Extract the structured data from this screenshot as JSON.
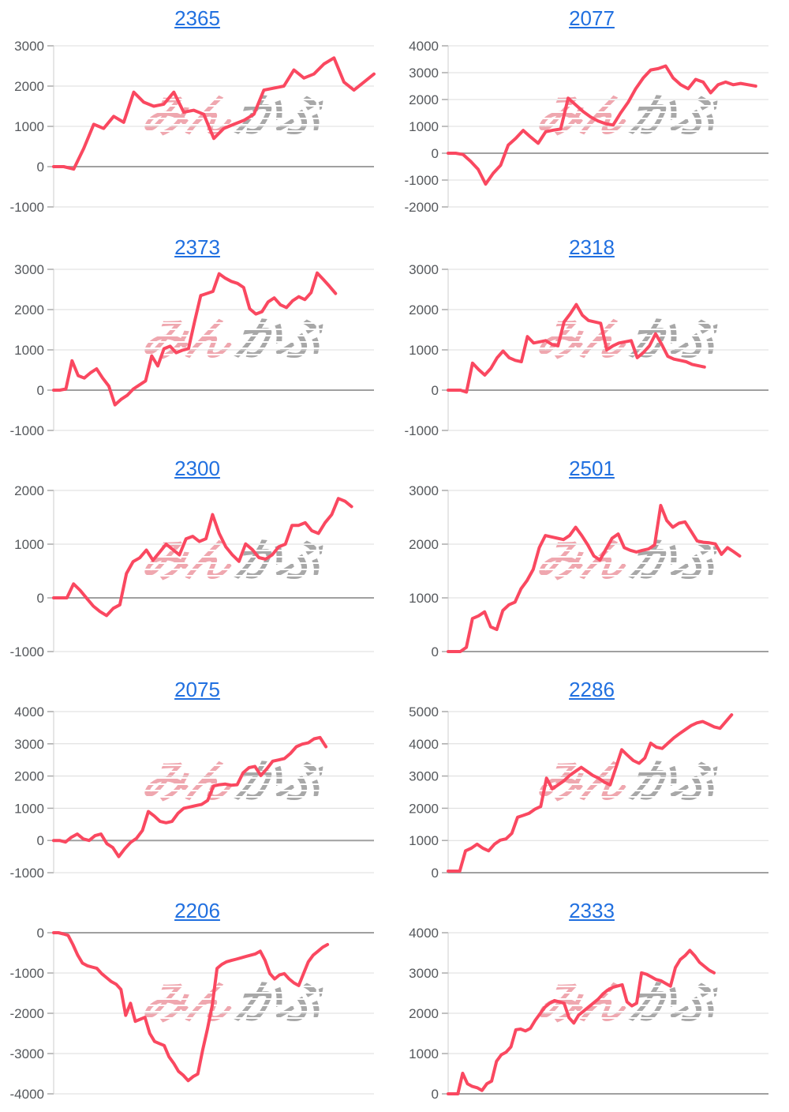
{
  "watermark": {
    "pink": "みん",
    "gray": "かぶ"
  },
  "colors": {
    "line": "#fa4860",
    "title_link": "#2170e0",
    "grid": "#dcdcdc",
    "zero_line": "#a0a0a0",
    "axis": "#cccccc",
    "tick": "#aaaaaa",
    "label": "#55585c",
    "watermark_pink": "#ec98a1",
    "watermark_gray": "#9c9c9c"
  },
  "chart_data": [
    {
      "type": "line",
      "title": "2365",
      "xlabel": "",
      "ylabel": "",
      "y_max": 3000,
      "y_min": -1000,
      "tick_step": 1000,
      "grid": true,
      "legend": "none",
      "tick_labels": [
        "3000",
        "2000",
        "1000",
        "0",
        "-1000"
      ],
      "end_frac": 1.0,
      "values": [
        0,
        0,
        -60,
        450,
        1050,
        950,
        1250,
        1100,
        1850,
        1600,
        1500,
        1550,
        1850,
        1350,
        1400,
        1300,
        700,
        950,
        1050,
        1150,
        1300,
        1900,
        1950,
        2000,
        2400,
        2200,
        2300,
        2550,
        2700,
        2100,
        1900,
        2100,
        2300
      ]
    },
    {
      "type": "line",
      "title": "2077",
      "xlabel": "",
      "ylabel": "",
      "y_max": 4000,
      "y_min": -2000,
      "tick_step": 1000,
      "grid": true,
      "legend": "none",
      "tick_labels": [
        "4000",
        "3000",
        "2000",
        "1000",
        "0",
        "-1000",
        "-2000"
      ],
      "end_frac": 0.96,
      "values": [
        0,
        0,
        -50,
        -300,
        -600,
        -1150,
        -750,
        -450,
        300,
        550,
        850,
        600,
        370,
        800,
        860,
        900,
        2050,
        1800,
        1550,
        1350,
        1200,
        1100,
        1050,
        1500,
        1900,
        2400,
        2800,
        3100,
        3150,
        3250,
        2800,
        2550,
        2400,
        2750,
        2650,
        2250,
        2550,
        2650,
        2550,
        2600,
        2550,
        2500
      ]
    },
    {
      "type": "line",
      "title": "2373",
      "xlabel": "",
      "ylabel": "",
      "y_max": 3000,
      "y_min": -1000,
      "tick_step": 1000,
      "grid": true,
      "legend": "none",
      "tick_labels": [
        "3000",
        "2000",
        "1000",
        "0",
        "-1000"
      ],
      "end_frac": 0.88,
      "values": [
        0,
        0,
        30,
        730,
        360,
        300,
        430,
        530,
        300,
        100,
        -365,
        -230,
        -130,
        30,
        130,
        230,
        850,
        600,
        1030,
        1090,
        930,
        990,
        1030,
        1700,
        2350,
        2400,
        2450,
        2890,
        2780,
        2700,
        2650,
        2550,
        2020,
        1890,
        1950,
        2190,
        2290,
        2120,
        2050,
        2220,
        2320,
        2250,
        2420,
        2910,
        2750,
        2580,
        2400
      ]
    },
    {
      "type": "line",
      "title": "2318",
      "xlabel": "",
      "ylabel": "",
      "y_max": 3000,
      "y_min": -1000,
      "tick_step": 1000,
      "grid": true,
      "legend": "none",
      "tick_labels": [
        "3000",
        "2000",
        "1000",
        "0",
        "-1000"
      ],
      "end_frac": 0.8,
      "values": [
        0,
        0,
        0,
        -50,
        670,
        510,
        375,
        540,
        800,
        970,
        805,
        740,
        705,
        1330,
        1170,
        1200,
        1230,
        1135,
        1100,
        1695,
        1895,
        2125,
        1860,
        1730,
        1695,
        1660,
        1000,
        1100,
        1170,
        1200,
        1230,
        805,
        935,
        1100,
        1400,
        1135,
        840,
        770,
        740,
        705,
        640,
        605,
        575
      ]
    },
    {
      "type": "line",
      "title": "2300",
      "xlabel": "",
      "ylabel": "",
      "y_max": 2000,
      "y_min": -1000,
      "tick_step": 1000,
      "grid": true,
      "legend": "none",
      "tick_labels": [
        "2000",
        "1000",
        "0",
        "-1000"
      ],
      "end_frac": 0.93,
      "values": [
        0,
        0,
        0,
        260,
        140,
        -10,
        -155,
        -255,
        -330,
        -195,
        -130,
        455,
        675,
        745,
        890,
        700,
        850,
        1000,
        900,
        800,
        1100,
        1145,
        1050,
        1100,
        1550,
        1200,
        950,
        800,
        680,
        1005,
        900,
        750,
        720,
        800,
        950,
        1000,
        1350,
        1350,
        1400,
        1250,
        1200,
        1400,
        1550,
        1850,
        1800,
        1700
      ]
    },
    {
      "type": "line",
      "title": "2501",
      "xlabel": "",
      "ylabel": "",
      "y_max": 3000,
      "y_min": 0,
      "tick_step": 1000,
      "grid": true,
      "legend": "none",
      "tick_labels": [
        "3000",
        "2000",
        "1000",
        "0"
      ],
      "end_frac": 0.91,
      "values": [
        0,
        0,
        0,
        80,
        615,
        665,
        740,
        460,
        410,
        765,
        870,
        920,
        1170,
        1325,
        1530,
        1935,
        2160,
        2135,
        2110,
        2085,
        2160,
        2315,
        2160,
        1985,
        1780,
        1705,
        1910,
        2110,
        2190,
        1935,
        1885,
        1855,
        1885,
        1910,
        1985,
        2720,
        2440,
        2315,
        2390,
        2415,
        2240,
        2060,
        2035,
        2025,
        2005,
        1810,
        1935,
        1860,
        1780
      ]
    },
    {
      "type": "line",
      "title": "2075",
      "xlabel": "",
      "ylabel": "",
      "y_max": 4000,
      "y_min": -1000,
      "tick_step": 1000,
      "grid": true,
      "legend": "none",
      "tick_labels": [
        "4000",
        "3000",
        "2000",
        "1000",
        "0",
        "-1000"
      ],
      "end_frac": 0.85,
      "values": [
        0,
        0,
        -50,
        100,
        200,
        50,
        0,
        150,
        200,
        -100,
        -220,
        -500,
        -260,
        -60,
        65,
        310,
        900,
        760,
        590,
        550,
        590,
        840,
        1000,
        1040,
        1080,
        1120,
        1240,
        1690,
        1730,
        1750,
        1715,
        1730,
        2100,
        2260,
        2300,
        2015,
        2220,
        2460,
        2500,
        2545,
        2700,
        2910,
        2990,
        3030,
        3155,
        3195,
        2910
      ]
    },
    {
      "type": "line",
      "title": "2286",
      "xlabel": "",
      "ylabel": "",
      "y_max": 5000,
      "y_min": 0,
      "tick_step": 1000,
      "grid": true,
      "legend": "none",
      "tick_labels": [
        "5000",
        "4000",
        "3000",
        "2000",
        "1000",
        "0"
      ],
      "end_frac": 0.885,
      "values": [
        50,
        50,
        50,
        680,
        760,
        885,
        760,
        680,
        885,
        1010,
        1050,
        1220,
        1720,
        1780,
        1845,
        1970,
        2055,
        2935,
        2600,
        2725,
        2850,
        3020,
        3145,
        3270,
        3145,
        3020,
        2935,
        2810,
        2725,
        3270,
        3815,
        3645,
        3480,
        3395,
        3560,
        4020,
        3895,
        3855,
        4020,
        4185,
        4315,
        4440,
        4565,
        4650,
        4690,
        4610,
        4525,
        4480,
        4690,
        4900
      ]
    },
    {
      "type": "line",
      "title": "2206",
      "xlabel": "",
      "ylabel": "",
      "y_max": 0,
      "y_min": -4000,
      "tick_step": 1000,
      "grid": true,
      "legend": "none",
      "tick_labels": [
        "0",
        "-1000",
        "-2000",
        "-3000",
        "-4000"
      ],
      "end_frac": 0.855,
      "values": [
        0,
        0,
        -30,
        -65,
        -295,
        -557,
        -754,
        -820,
        -853,
        -885,
        -1016,
        -1115,
        -1213,
        -1279,
        -1410,
        -2050,
        -1750,
        -2200,
        -2150,
        -2100,
        -2500,
        -2700,
        -2750,
        -2800,
        -3080,
        -3246,
        -3443,
        -3541,
        -3672,
        -3574,
        -3508,
        -2918,
        -2393,
        -1803,
        -885,
        -787,
        -721,
        -689,
        -656,
        -623,
        -590,
        -557,
        -525,
        -459,
        -689,
        -1016,
        -1148,
        -1049,
        -1016,
        -1148,
        -1246,
        -1311,
        -1016,
        -721,
        -557,
        -459,
        -361,
        -295
      ]
    },
    {
      "type": "line",
      "title": "2333",
      "xlabel": "",
      "ylabel": "",
      "y_max": 4000,
      "y_min": 0,
      "tick_step": 1000,
      "grid": true,
      "legend": "none",
      "tick_labels": [
        "4000",
        "3000",
        "2000",
        "1000",
        "0"
      ],
      "end_frac": 0.83,
      "values": [
        0,
        0,
        0,
        510,
        250,
        184,
        150,
        85,
        250,
        315,
        807,
        970,
        1036,
        1167,
        1593,
        1607,
        1561,
        1626,
        1823,
        1987,
        2151,
        2249,
        2315,
        2282,
        2249,
        1889,
        1757,
        1954,
        2052,
        2151,
        2249,
        2348,
        2479,
        2577,
        2643,
        2675,
        2708,
        2282,
        2184,
        2249,
        3003,
        2970,
        2905,
        2839,
        2807,
        2741,
        2675,
        3134,
        3331,
        3429,
        3560,
        3429,
        3265,
        3167,
        3069,
        3003
      ]
    }
  ]
}
